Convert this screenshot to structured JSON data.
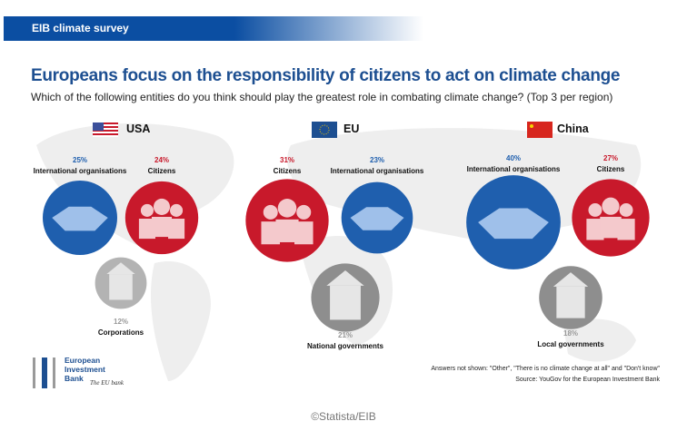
{
  "header": {
    "label": "EIB climate survey"
  },
  "title": "Europeans focus on the responsibility of citizens to act on climate change",
  "subtitle": "Which of the following entities do you think should play the greatest role in combating climate change? (Top 3 per region)",
  "colors": {
    "international_organisations": "#1f5fae",
    "citizens": "#c8192b",
    "third": "#b3b3b3",
    "title": "#1d4f91"
  },
  "chart_data": {
    "type": "bubble",
    "regions": [
      {
        "name": "USA",
        "flag": "usa-flag",
        "items": [
          {
            "label": "International organisations",
            "pct": "25%",
            "value": 25,
            "kind": "international_organisations",
            "icon": "handshake-icon"
          },
          {
            "label": "Citizens",
            "pct": "24%",
            "value": 24,
            "kind": "citizens",
            "icon": "people-icon"
          },
          {
            "label": "Corporations",
            "pct": "12%",
            "value": 12,
            "kind": "third",
            "icon": "office-building-icon"
          }
        ]
      },
      {
        "name": "EU",
        "flag": "eu-flag",
        "items": [
          {
            "label": "Citizens",
            "pct": "31%",
            "value": 31,
            "kind": "citizens",
            "icon": "people-icon"
          },
          {
            "label": "International organisations",
            "pct": "23%",
            "value": 23,
            "kind": "international_organisations",
            "icon": "handshake-icon"
          },
          {
            "label": "National governments",
            "pct": "21%",
            "value": 21,
            "kind": "third",
            "icon": "capitol-icon"
          }
        ]
      },
      {
        "name": "China",
        "flag": "china-flag",
        "items": [
          {
            "label": "International organisations",
            "pct": "40%",
            "value": 40,
            "kind": "international_organisations",
            "icon": "handshake-icon"
          },
          {
            "label": "Citizens",
            "pct": "27%",
            "value": 27,
            "kind": "citizens",
            "icon": "people-icon"
          },
          {
            "label": "Local governments",
            "pct": "18%",
            "value": 18,
            "kind": "third",
            "icon": "town-hall-icon"
          }
        ]
      }
    ]
  },
  "logo": {
    "line1": "European",
    "line2": "Investment",
    "line3": "Bank",
    "tagline": "The EU bank"
  },
  "notes": {
    "not_shown": "Answers not shown: \"Other\", \"There is no climate change at all\" and \"Don't know\"",
    "source": "Source: YouGov for the European Investment Bank"
  },
  "footer": "©Statista/EIB"
}
